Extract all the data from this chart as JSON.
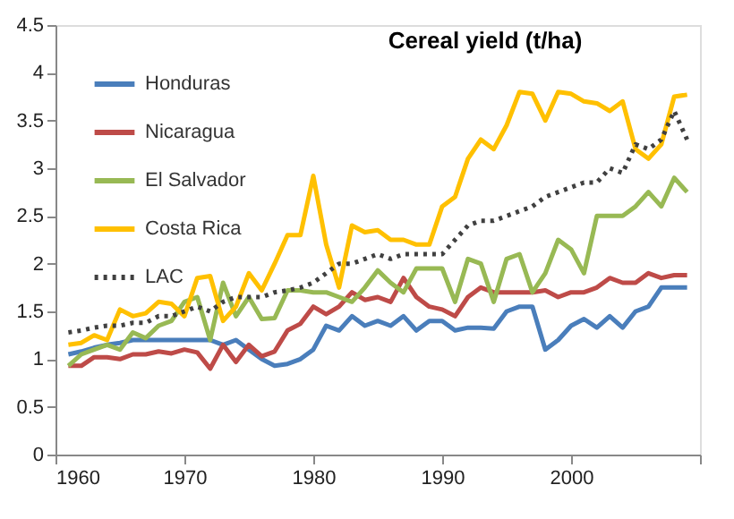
{
  "chart_data": {
    "type": "line",
    "title": "Cereal yield (t/ha)",
    "x": [
      1961,
      1962,
      1963,
      1964,
      1965,
      1966,
      1967,
      1968,
      1969,
      1970,
      1971,
      1972,
      1973,
      1974,
      1975,
      1976,
      1977,
      1978,
      1979,
      1980,
      1981,
      1982,
      1983,
      1984,
      1985,
      1986,
      1987,
      1988,
      1989,
      1990,
      1991,
      1992,
      1993,
      1994,
      1995,
      1996,
      1997,
      1998,
      1999,
      2000,
      2001,
      2002,
      2003,
      2004,
      2005,
      2006,
      2007,
      2008,
      2009
    ],
    "xlim": [
      1960,
      2010
    ],
    "xticks": [
      1960,
      1970,
      1980,
      1990,
      2000,
      {
        "value": 2010,
        "label": null
      }
    ],
    "ylim": [
      0,
      4.5
    ],
    "yticks": [
      0,
      0.5,
      1,
      1.5,
      2,
      2.5,
      3,
      3.5,
      4,
      4.5
    ],
    "grid": false,
    "legend": "top left",
    "marker": "none",
    "series": [
      {
        "name": "Honduras",
        "color": "#4a7ebb",
        "line_style": "solid",
        "values": [
          1.05,
          1.08,
          1.12,
          1.15,
          1.17,
          1.2,
          1.2,
          1.2,
          1.2,
          1.2,
          1.2,
          1.2,
          1.15,
          1.2,
          1.1,
          1.0,
          0.93,
          0.95,
          1.0,
          1.1,
          1.35,
          1.3,
          1.45,
          1.35,
          1.4,
          1.35,
          1.45,
          1.3,
          1.4,
          1.4,
          1.3,
          1.33,
          1.33,
          1.32,
          1.5,
          1.55,
          1.55,
          1.1,
          1.2,
          1.35,
          1.42,
          1.33,
          1.45,
          1.33,
          1.5,
          1.55,
          1.75,
          1.75,
          1.75
        ]
      },
      {
        "name": "Nicaragua",
        "color": "#be4b48",
        "line_style": "solid",
        "values": [
          0.93,
          0.93,
          1.02,
          1.02,
          1.0,
          1.05,
          1.05,
          1.08,
          1.06,
          1.1,
          1.07,
          0.9,
          1.15,
          0.97,
          1.15,
          1.03,
          1.08,
          1.3,
          1.37,
          1.55,
          1.47,
          1.55,
          1.7,
          1.62,
          1.65,
          1.6,
          1.85,
          1.65,
          1.55,
          1.52,
          1.45,
          1.65,
          1.75,
          1.7,
          1.7,
          1.7,
          1.7,
          1.72,
          1.65,
          1.7,
          1.7,
          1.75,
          1.85,
          1.8,
          1.8,
          1.9,
          1.85,
          1.88,
          1.88
        ]
      },
      {
        "name": "El Salvador",
        "color": "#98b954",
        "line_style": "solid",
        "values": [
          0.93,
          1.05,
          1.1,
          1.15,
          1.1,
          1.28,
          1.22,
          1.35,
          1.4,
          1.6,
          1.65,
          1.2,
          1.8,
          1.45,
          1.65,
          1.42,
          1.43,
          1.72,
          1.72,
          1.7,
          1.7,
          1.65,
          1.6,
          1.75,
          1.93,
          1.8,
          1.7,
          1.95,
          1.95,
          1.95,
          1.6,
          2.05,
          2.0,
          1.6,
          2.05,
          2.1,
          1.7,
          1.9,
          2.25,
          2.15,
          1.9,
          2.5,
          2.5,
          2.5,
          2.6,
          2.75,
          2.6,
          2.9,
          2.75
        ]
      },
      {
        "name": "Costa Rica",
        "color": "#ffc000",
        "line_style": "solid",
        "values": [
          1.15,
          1.17,
          1.25,
          1.2,
          1.52,
          1.45,
          1.48,
          1.6,
          1.58,
          1.45,
          1.85,
          1.87,
          1.4,
          1.55,
          1.9,
          1.72,
          2.0,
          2.3,
          2.3,
          2.92,
          2.2,
          1.75,
          2.4,
          2.33,
          2.35,
          2.25,
          2.25,
          2.2,
          2.2,
          2.6,
          2.7,
          3.1,
          3.3,
          3.2,
          3.45,
          3.8,
          3.78,
          3.5,
          3.8,
          3.78,
          3.7,
          3.68,
          3.6,
          3.7,
          3.2,
          3.1,
          3.25,
          3.75,
          3.77
        ]
      },
      {
        "name": "LAC",
        "color": "#404040",
        "line_style": "dotted",
        "values": [
          1.28,
          1.3,
          1.33,
          1.35,
          1.35,
          1.38,
          1.38,
          1.45,
          1.45,
          1.5,
          1.55,
          1.5,
          1.6,
          1.65,
          1.65,
          1.65,
          1.7,
          1.72,
          1.75,
          1.8,
          1.9,
          2.0,
          2.0,
          2.05,
          2.1,
          2.05,
          2.1,
          2.1,
          2.1,
          2.1,
          2.25,
          2.4,
          2.45,
          2.45,
          2.5,
          2.55,
          2.6,
          2.7,
          2.75,
          2.8,
          2.85,
          2.85,
          3.0,
          2.95,
          3.25,
          3.2,
          3.3,
          3.6,
          3.3
        ]
      }
    ]
  }
}
